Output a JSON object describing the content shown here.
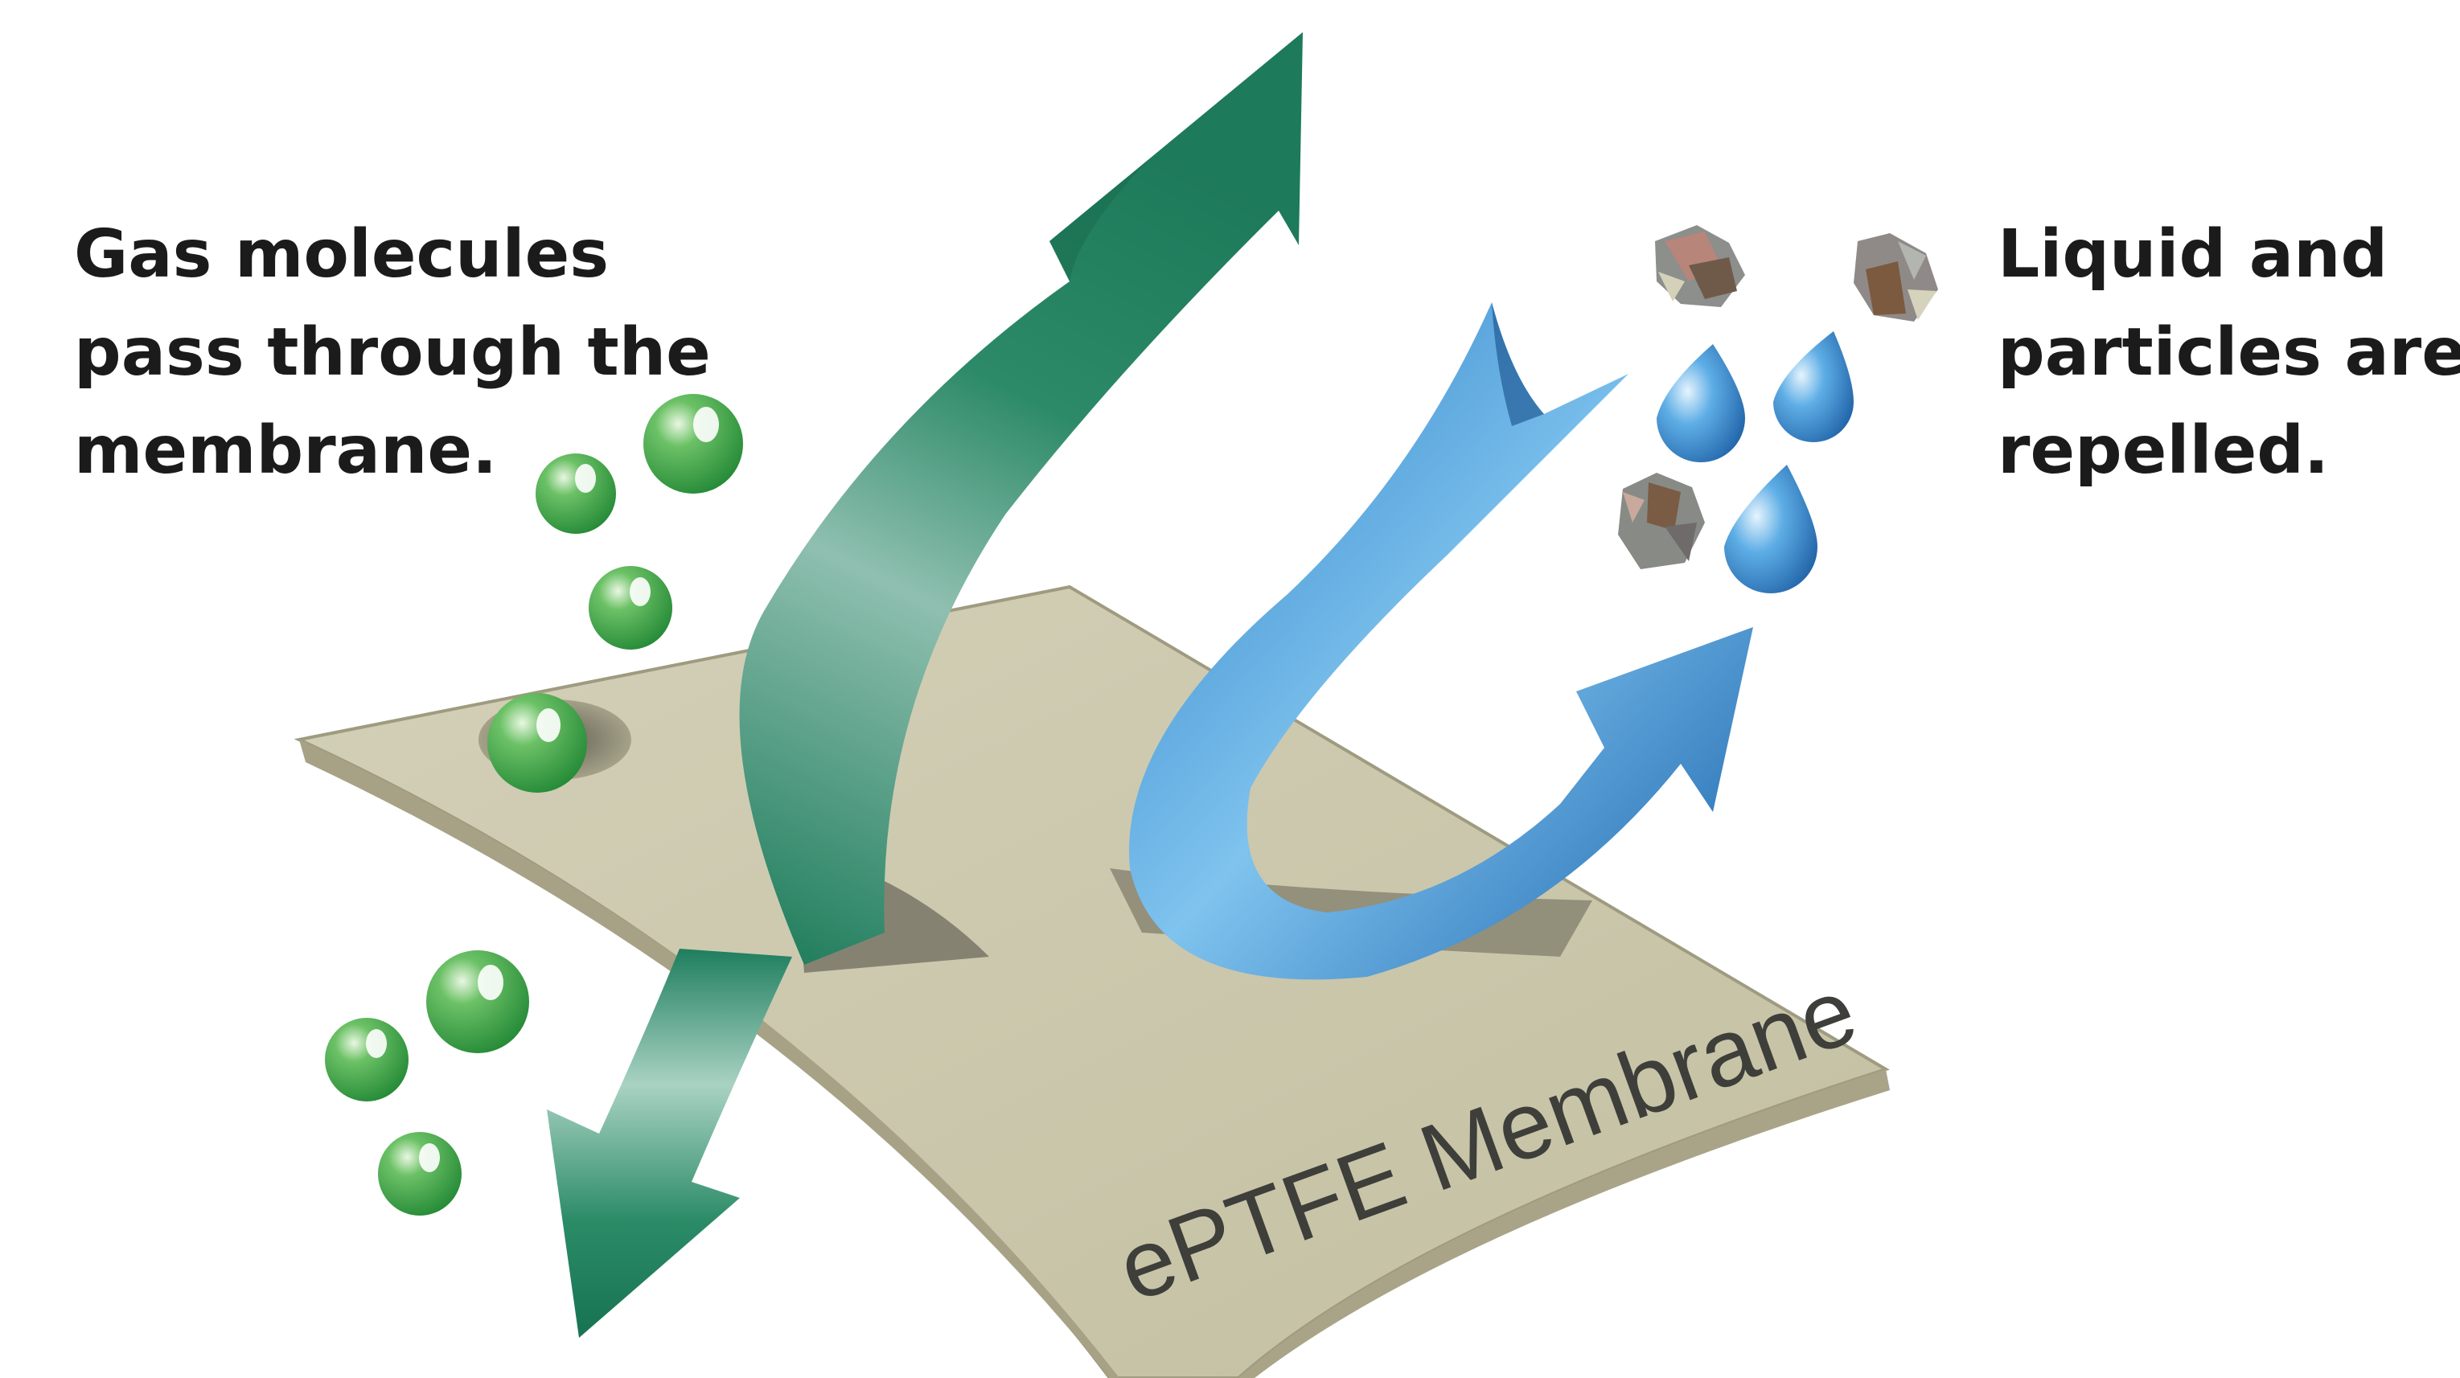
{
  "captions": {
    "gas": [
      "Gas molecules",
      "pass through the",
      "membrane."
    ],
    "liquid": [
      "Liquid and",
      "particles are",
      "repelled."
    ]
  },
  "membrane": {
    "label": "ePTFE Membrane",
    "color": "#cbc7ac"
  },
  "colors": {
    "gas_arrow": "#1e7a5c",
    "liquid_arrow": "#1f6fb5",
    "gas_molecule": "#3aa24a",
    "water_drop": "#2f7fcf",
    "caption_text": "#1b1b1b"
  },
  "icons": {
    "gas_molecule": "green-sphere-icon",
    "water_drop": "water-drop-icon",
    "particle": "debris-particle-icon"
  }
}
